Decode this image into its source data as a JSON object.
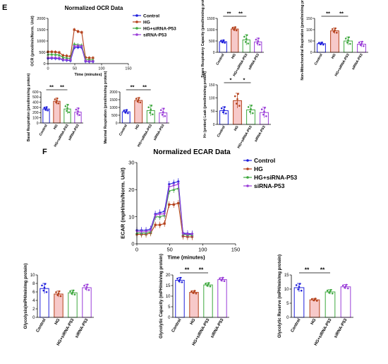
{
  "panel_labels": {
    "e": "E",
    "f": "F"
  },
  "legend_labels": [
    "Control",
    "HG",
    "HG+siRNA-P53",
    "siRNA-P53"
  ],
  "colors": {
    "control": "#1f1fdc",
    "hg": "#b5411b",
    "hg_sirna": "#3ea83e",
    "sirna": "#9a3dd8",
    "hg_bar_fill": "#f7c9c9",
    "axis": "#000000"
  },
  "chart_data": [
    {
      "id": "ocr",
      "type": "line",
      "title": "Normalized OCR Data",
      "xlabel": "Time (minutes)",
      "ylabel": "OCR (pmol/min/Norm. Unit)",
      "xlim": [
        0,
        150
      ],
      "ylim": [
        0,
        2000
      ],
      "xticks": [
        "0",
        "50",
        "100",
        "150"
      ],
      "yticks": [
        "0",
        "500",
        "1000",
        "1500",
        "2000"
      ],
      "legend_position": "right",
      "x": [
        0,
        7,
        14,
        21,
        28,
        35,
        42,
        49,
        56,
        63,
        70,
        77,
        84
      ],
      "series": [
        {
          "name": "Control",
          "values": [
            230,
            240,
            230,
            220,
            160,
            150,
            130,
            700,
            720,
            710,
            100,
            90,
            90
          ]
        },
        {
          "name": "HG",
          "values": [
            520,
            520,
            510,
            490,
            360,
            340,
            320,
            1500,
            1420,
            1380,
            270,
            250,
            250
          ]
        },
        {
          "name": "HG+siRNA-P53",
          "values": [
            410,
            410,
            400,
            380,
            270,
            250,
            230,
            870,
            830,
            820,
            180,
            170,
            160
          ]
        },
        {
          "name": "siRNA-P53",
          "values": [
            250,
            255,
            250,
            240,
            170,
            160,
            150,
            760,
            780,
            760,
            110,
            100,
            100
          ]
        }
      ]
    },
    {
      "id": "spare",
      "type": "bar",
      "ylabel": "Spare Respiratory Capacity (pmol/min/mg protein)",
      "categories": [
        "Control",
        "HG",
        "HG+siRNA-P53",
        "siRNA-P53"
      ],
      "values": [
        470,
        1030,
        550,
        460
      ],
      "errors": [
        70,
        90,
        230,
        170
      ],
      "ylim": [
        0,
        1500
      ],
      "yticks": [
        "0",
        "500",
        "1000",
        "1500"
      ],
      "sig": [
        {
          "from": 0,
          "to": 1,
          "label": "**"
        },
        {
          "from": 1,
          "to": 2,
          "label": "**"
        }
      ]
    },
    {
      "id": "nonmito",
      "type": "bar",
      "ylabel": "Non-Mitochondrial Respiration (pmol/min/mg protein)",
      "categories": [
        "Control",
        "HG",
        "HG+siRNA-P53",
        "siRNA-P53"
      ],
      "values": [
        38,
        95,
        50,
        36
      ],
      "errors": [
        6,
        12,
        18,
        12
      ],
      "ylim": [
        0,
        150
      ],
      "yticks": [
        "0",
        "50",
        "100",
        "150"
      ],
      "sig": [
        {
          "from": 0,
          "to": 1,
          "label": "**"
        },
        {
          "from": 1,
          "to": 2,
          "label": "**"
        }
      ]
    },
    {
      "id": "basal",
      "type": "bar",
      "ylabel": "Basal Respiration (pmol/min/mg protein)",
      "categories": [
        "Control",
        "HG",
        "HG+siRNA-P53",
        "siRNA-P53"
      ],
      "values": [
        270,
        420,
        270,
        210
      ],
      "errors": [
        40,
        60,
        90,
        80
      ],
      "ylim": [
        0,
        600
      ],
      "yticks": [
        "0",
        "100",
        "200",
        "300",
        "400",
        "500",
        "600"
      ],
      "sig": [
        {
          "from": 0,
          "to": 1,
          "label": "**"
        },
        {
          "from": 1,
          "to": 2,
          "label": "**"
        }
      ]
    },
    {
      "id": "maximal",
      "type": "bar",
      "ylabel": "Maximal Respiration (pmol/min/mg protein)",
      "categories": [
        "Control",
        "HG",
        "HG+siRNA-P53",
        "siRNA-P53"
      ],
      "values": [
        720,
        1450,
        800,
        650
      ],
      "errors": [
        130,
        180,
        350,
        300
      ],
      "ylim": [
        0,
        2000
      ],
      "yticks": [
        "0",
        "500",
        "1000",
        "1500",
        "2000"
      ],
      "sig": [
        {
          "from": 0,
          "to": 1,
          "label": "**"
        },
        {
          "from": 1,
          "to": 2,
          "label": "**"
        }
      ]
    },
    {
      "id": "leak",
      "type": "bar",
      "ylabel": "H+ (proton) Leak (pmol/min/mg protein)",
      "categories": [
        "Control",
        "HG",
        "HG+siRNA-P53",
        "siRNA-P53"
      ],
      "values": [
        52,
        90,
        55,
        45
      ],
      "errors": [
        15,
        28,
        18,
        20
      ],
      "ylim": [
        0,
        150
      ],
      "yticks": [
        "0",
        "50",
        "100",
        "150"
      ],
      "sig": [
        {
          "from": 0,
          "to": 1,
          "label": "*"
        },
        {
          "from": 1,
          "to": 2,
          "label": "*"
        }
      ]
    },
    {
      "id": "ecar",
      "type": "line",
      "title": "Normalized ECAR Data",
      "xlabel": "Time (minutes)",
      "ylabel": "ECAR (mpH/min/Norm. Unit)",
      "xlim": [
        0,
        150
      ],
      "ylim": [
        0,
        30
      ],
      "xticks": [
        "0",
        "50",
        "100",
        "150"
      ],
      "yticks": [
        "0",
        "10",
        "20",
        "30"
      ],
      "legend_position": "right",
      "x": [
        0,
        7,
        14,
        21,
        28,
        35,
        42,
        49,
        56,
        63,
        70,
        77,
        84
      ],
      "series": [
        {
          "name": "Control",
          "values": [
            5,
            5,
            5,
            5.5,
            11,
            11.5,
            12,
            22,
            22.5,
            23,
            4,
            3.8,
            3.7
          ]
        },
        {
          "name": "HG",
          "values": [
            3.5,
            3.5,
            3.5,
            4,
            7,
            7,
            7.5,
            14.5,
            14.5,
            15,
            2.8,
            2.6,
            2.6
          ]
        },
        {
          "name": "HG+siRNA-P53",
          "values": [
            4,
            4,
            4,
            4.5,
            10,
            10,
            10.5,
            19.5,
            20,
            20.5,
            3.5,
            3.3,
            3.3
          ]
        },
        {
          "name": "siRNA-P53",
          "values": [
            4.5,
            4.5,
            4.5,
            5,
            10.5,
            11,
            11,
            21,
            21.5,
            22,
            3.7,
            3.5,
            3.5
          ]
        }
      ]
    },
    {
      "id": "glyco",
      "type": "bar",
      "ylabel": "Glycolysis(mPH/min/mg protein)",
      "categories": [
        "Control",
        "HG",
        "HG+siRNA-P53",
        "siRNA-P53"
      ],
      "values": [
        6.8,
        5.5,
        5.8,
        7.0
      ],
      "errors": [
        1.2,
        0.7,
        0.6,
        0.8
      ],
      "ylim": [
        0,
        10
      ],
      "yticks": [
        "0",
        "2",
        "4",
        "6",
        "8",
        "10"
      ],
      "sig": []
    },
    {
      "id": "glycocap",
      "type": "bar",
      "ylabel": "Glycolytic Capacity (mPH/min/mg protein)",
      "categories": [
        "Control",
        "HG",
        "HG+siRNA-P53",
        "siRNA-P53"
      ],
      "values": [
        17.5,
        11.8,
        15.3,
        17.8
      ],
      "errors": [
        1.3,
        0.8,
        1.0,
        1.0
      ],
      "ylim": [
        0,
        20
      ],
      "yticks": [
        "0",
        "5",
        "10",
        "15",
        "20"
      ],
      "sig": [
        {
          "from": 0,
          "to": 1,
          "label": "**"
        },
        {
          "from": 1,
          "to": 2,
          "label": "**"
        }
      ]
    },
    {
      "id": "glycores",
      "type": "bar",
      "ylabel": "Glycolytic Reserve (mPH/min/mg protein)",
      "categories": [
        "Control",
        "HG",
        "HG+siRNA-P53",
        "siRNA-P53"
      ],
      "values": [
        10.5,
        6.2,
        9.0,
        10.8
      ],
      "errors": [
        1.5,
        0.5,
        0.8,
        0.8
      ],
      "ylim": [
        0,
        15
      ],
      "yticks": [
        "0",
        "5",
        "10",
        "15"
      ],
      "sig": [
        {
          "from": 0,
          "to": 1,
          "label": "**"
        },
        {
          "from": 1,
          "to": 2,
          "label": "**"
        }
      ]
    }
  ]
}
